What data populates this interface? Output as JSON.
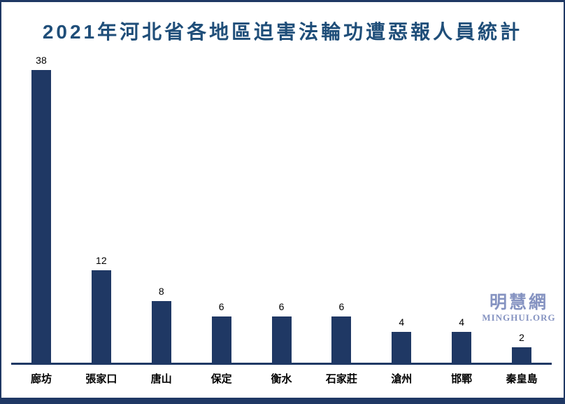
{
  "title": {
    "text": "2021年河北省各地區迫害法輪功遭惡報人員統計"
  },
  "watermark": {
    "cjk": "明慧網",
    "latin": "MINGHUI.ORG"
  },
  "colors": {
    "background": "#FFFFFF",
    "bar": "#1F3864",
    "frame_border": "#1F3864",
    "axis_line": "#1F3864",
    "bottom_band": "#1F3864",
    "title_text": "#1F4E79",
    "label_text": "#000000",
    "watermark_text": "#8593C1"
  },
  "chart_data": {
    "type": "bar",
    "title": "2021年河北省各地區迫害法輪功遭惡報人員統計",
    "categories": [
      "廊坊",
      "張家口",
      "唐山",
      "保定",
      "衡水",
      "石家莊",
      "滄州",
      "邯鄲",
      "秦皇島"
    ],
    "values": [
      38,
      12,
      8,
      6,
      6,
      6,
      4,
      4,
      2
    ],
    "value_labels_shown": true,
    "xlabel": "",
    "ylabel": "",
    "ylim": [
      0,
      40
    ],
    "grid": false,
    "legend": false,
    "y_axis_shown": false,
    "x_axis_shown": true,
    "bar_color": "#1F3864"
  }
}
